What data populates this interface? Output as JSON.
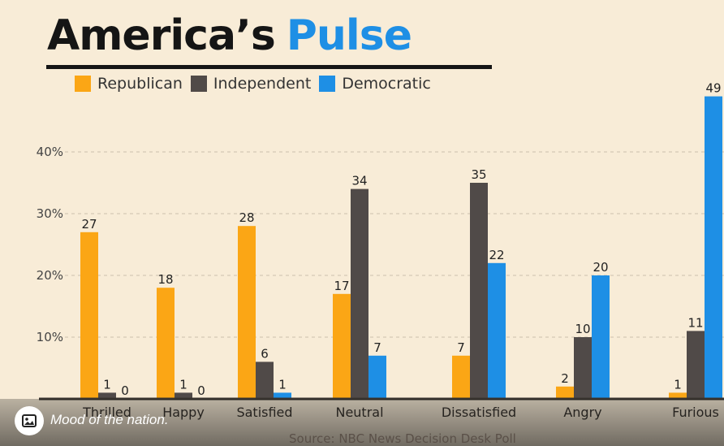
{
  "title": {
    "part1": "America’s",
    "part2": "Pulse"
  },
  "colors": {
    "background": "#f8ecd7",
    "republican": "#fba615",
    "independent": "#504a48",
    "democratic": "#1e8fe5",
    "title_dark": "#151515",
    "title_blue": "#1e8fe5"
  },
  "caption": {
    "text": "Mood of the nation.",
    "icon": "image-icon"
  },
  "source": "Source: NBC News Decision Desk Poll",
  "chart_data": {
    "type": "bar",
    "title": "America’s Pulse",
    "xlabel": "",
    "ylabel": "",
    "categories": [
      "Thrilled",
      "Happy",
      "Satisfied",
      "Neutral",
      "Dissatisfied",
      "Angry",
      "Furious"
    ],
    "series": [
      {
        "name": "Republican",
        "color": "#fba615",
        "values": [
          27,
          18,
          28,
          17,
          7,
          2,
          1
        ]
      },
      {
        "name": "Independent",
        "color": "#504a48",
        "values": [
          1,
          1,
          6,
          34,
          35,
          10,
          11
        ]
      },
      {
        "name": "Democratic",
        "color": "#1e8fe5",
        "values": [
          0,
          0,
          1,
          7,
          22,
          20,
          49
        ]
      }
    ],
    "y_ticks": [
      10,
      20,
      30,
      40
    ],
    "y_tick_labels": [
      "10%",
      "20%",
      "30%",
      "40%"
    ],
    "ylim": [
      0,
      52
    ],
    "grid": true,
    "legend_position": "top-left"
  }
}
